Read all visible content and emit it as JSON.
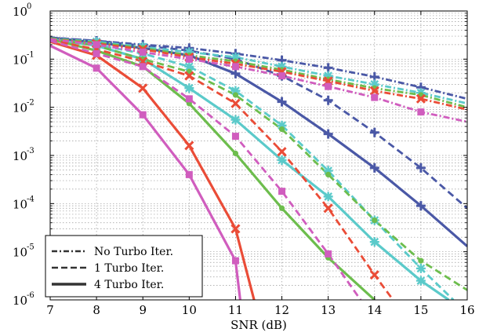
{
  "chart_data": {
    "type": "line",
    "xlabel": "SNR (dB)",
    "ylabel": "",
    "xlim": [
      7,
      16
    ],
    "ylim": [
      1e-06,
      1
    ],
    "yscale": "log",
    "grid": true,
    "x_ticks": [
      "7",
      "8",
      "9",
      "10",
      "11",
      "12",
      "13",
      "14",
      "15",
      "16"
    ],
    "y_ticks": [
      {
        "base": "10",
        "exp": "0",
        "value": 1
      },
      {
        "base": "10",
        "exp": "-1",
        "value": 0.1
      },
      {
        "base": "10",
        "exp": "-2",
        "value": 0.01
      },
      {
        "base": "10",
        "exp": "-3",
        "value": 0.001
      },
      {
        "base": "10",
        "exp": "-4",
        "value": 0.0001
      },
      {
        "base": "10",
        "exp": "-5",
        "value": 1e-05
      },
      {
        "base": "10",
        "exp": "-6",
        "value": 1e-06
      }
    ],
    "legend": {
      "position": "bottom-left",
      "entries": [
        {
          "label": "No Turbo Iter.",
          "style": "dashdot"
        },
        {
          "label": "1 Turbo Iter.",
          "style": "dashed"
        },
        {
          "label": "4 Turbo Iter.",
          "style": "solid"
        }
      ]
    },
    "series": [
      {
        "color": "#4a58a6",
        "marker": "plus",
        "style": "dashdot",
        "x": [
          7,
          8,
          9,
          10,
          11,
          12,
          13,
          14,
          15,
          16
        ],
        "y": [
          0.28,
          0.24,
          0.2,
          0.17,
          0.13,
          0.095,
          0.066,
          0.043,
          0.026,
          0.015
        ]
      },
      {
        "color": "#4a58a6",
        "marker": "plus",
        "style": "dashed",
        "x": [
          7,
          8,
          9,
          10,
          11,
          12,
          13,
          14,
          15,
          16
        ],
        "y": [
          0.28,
          0.24,
          0.19,
          0.15,
          0.1,
          0.045,
          0.014,
          0.003,
          0.00055,
          8e-05
        ]
      },
      {
        "color": "#4a58a6",
        "marker": "plus",
        "style": "solid",
        "x": [
          7,
          8,
          9,
          10,
          11,
          12,
          13,
          14,
          15,
          16
        ],
        "y": [
          0.28,
          0.22,
          0.17,
          0.12,
          0.05,
          0.013,
          0.0028,
          0.00055,
          9e-05,
          1.3e-05
        ]
      },
      {
        "color": "#5bcaca",
        "marker": "asterisk",
        "style": "dashdot",
        "x": [
          7,
          8,
          9,
          10,
          11,
          12,
          13,
          14,
          15,
          16
        ],
        "y": [
          0.27,
          0.23,
          0.18,
          0.14,
          0.11,
          0.07,
          0.045,
          0.03,
          0.02,
          0.012
        ]
      },
      {
        "color": "#5bcaca",
        "marker": "asterisk",
        "style": "dashed",
        "x": [
          7,
          8,
          9,
          10,
          11,
          12,
          13,
          14,
          15,
          15.7
        ],
        "y": [
          0.27,
          0.2,
          0.13,
          0.07,
          0.022,
          0.0042,
          0.00048,
          4.5e-05,
          4.5e-06,
          1e-06
        ]
      },
      {
        "color": "#5bcaca",
        "marker": "asterisk",
        "style": "solid",
        "x": [
          7,
          8,
          9,
          10,
          11,
          12,
          13,
          14,
          15,
          15.6
        ],
        "y": [
          0.26,
          0.19,
          0.1,
          0.025,
          0.0055,
          0.0008,
          0.00014,
          1.6e-05,
          2.5e-06,
          1e-06
        ]
      },
      {
        "color": "#6dbd4d",
        "marker": "dot",
        "style": "dashdot",
        "x": [
          7,
          8,
          9,
          10,
          11,
          12,
          13,
          14,
          15,
          16
        ],
        "y": [
          0.27,
          0.22,
          0.17,
          0.12,
          0.09,
          0.06,
          0.038,
          0.025,
          0.018,
          0.01
        ]
      },
      {
        "color": "#6dbd4d",
        "marker": "dot",
        "style": "dashed",
        "x": [
          7,
          8,
          9,
          10,
          11,
          12,
          13,
          14,
          15,
          16
        ],
        "y": [
          0.27,
          0.19,
          0.1,
          0.055,
          0.018,
          0.0035,
          0.0004,
          4.5e-05,
          6.5e-06,
          1.6e-06
        ]
      },
      {
        "color": "#6dbd4d",
        "marker": "dot",
        "style": "solid",
        "x": [
          7,
          8,
          9,
          10,
          11,
          12,
          13,
          14
        ],
        "y": [
          0.26,
          0.15,
          0.07,
          0.012,
          0.0011,
          8e-05,
          7.5e-06,
          1e-06
        ]
      },
      {
        "color": "#ea4c37",
        "marker": "cross",
        "style": "dashdot",
        "x": [
          7,
          8,
          9,
          10,
          11,
          12,
          13,
          14,
          15,
          16
        ],
        "y": [
          0.26,
          0.21,
          0.16,
          0.11,
          0.08,
          0.055,
          0.035,
          0.022,
          0.015,
          0.009
        ]
      },
      {
        "color": "#ea4c37",
        "marker": "cross",
        "style": "dashed",
        "x": [
          7,
          8,
          9,
          10,
          11,
          12,
          13,
          14,
          14.4
        ],
        "y": [
          0.25,
          0.16,
          0.09,
          0.045,
          0.012,
          0.0012,
          8e-05,
          3.3e-06,
          1e-06
        ]
      },
      {
        "color": "#ea4c37",
        "marker": "cross",
        "style": "solid",
        "x": [
          7,
          8,
          9,
          10,
          11,
          11.4
        ],
        "y": [
          0.23,
          0.12,
          0.025,
          0.0016,
          3e-05,
          1e-06
        ]
      },
      {
        "color": "#d05dbe",
        "marker": "square",
        "style": "dashdot",
        "x": [
          7,
          8,
          9,
          10,
          11,
          12,
          13,
          14,
          15,
          16
        ],
        "y": [
          0.26,
          0.2,
          0.14,
          0.1,
          0.07,
          0.045,
          0.027,
          0.016,
          0.008,
          0.005
        ]
      },
      {
        "color": "#d05dbe",
        "marker": "square",
        "style": "dashed",
        "x": [
          7,
          8,
          9,
          10,
          11,
          12,
          13,
          13.7
        ],
        "y": [
          0.24,
          0.13,
          0.07,
          0.015,
          0.0025,
          0.00018,
          9e-06,
          1e-06
        ]
      },
      {
        "color": "#d05dbe",
        "marker": "square",
        "style": "solid",
        "x": [
          7,
          8,
          9,
          10,
          11,
          11.1
        ],
        "y": [
          0.19,
          0.065,
          0.007,
          0.0004,
          6.5e-06,
          1e-06
        ]
      }
    ]
  }
}
